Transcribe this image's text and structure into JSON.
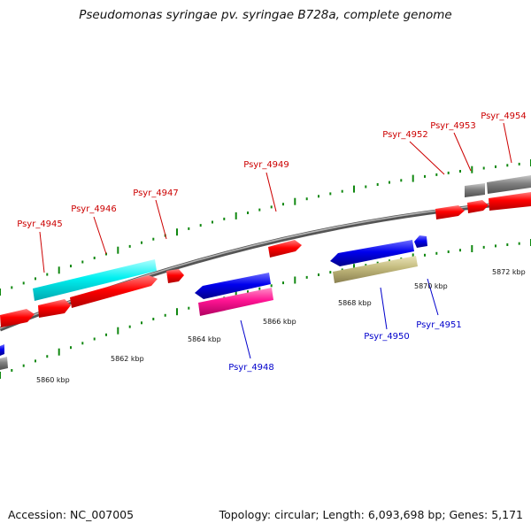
{
  "title": "Pseudomonas syringae pv. syringae B728a, complete genome",
  "footer": {
    "accession_label": "Accession:",
    "accession": "NC_007005",
    "topology_label": "Topology:",
    "topology": "circular",
    "length_label": "Length:",
    "length": "6,093,698 bp",
    "genes_label": "Genes:",
    "genes": "5,171"
  },
  "scale_labels": [
    "5860 kbp",
    "5862 kbp",
    "5864 kbp",
    "5866 kbp",
    "5868 kbp",
    "5870 kbp",
    "5872 kbp"
  ],
  "genes_forward": [
    "Psyr_4945",
    "Psyr_4946",
    "Psyr_4947",
    "Psyr_4949",
    "Psyr_4952",
    "Psyr_4953",
    "Psyr_4954"
  ],
  "genes_reverse": [
    "Psyr_4948",
    "Psyr_4950",
    "Psyr_4951"
  ],
  "colors": {
    "forward_label": "#cc0000",
    "reverse_label": "#0000cc",
    "red_gene": "#ff0000",
    "cyan_gene": "#00f0f0",
    "blue_gene": "#0000ee",
    "magenta_gene": "#ff1493",
    "olive_gene": "#c2b97c",
    "gray_gene": "#808080",
    "tick": "#118811",
    "leader_forward": "#cc0000",
    "leader_reverse": "#0000cc"
  }
}
